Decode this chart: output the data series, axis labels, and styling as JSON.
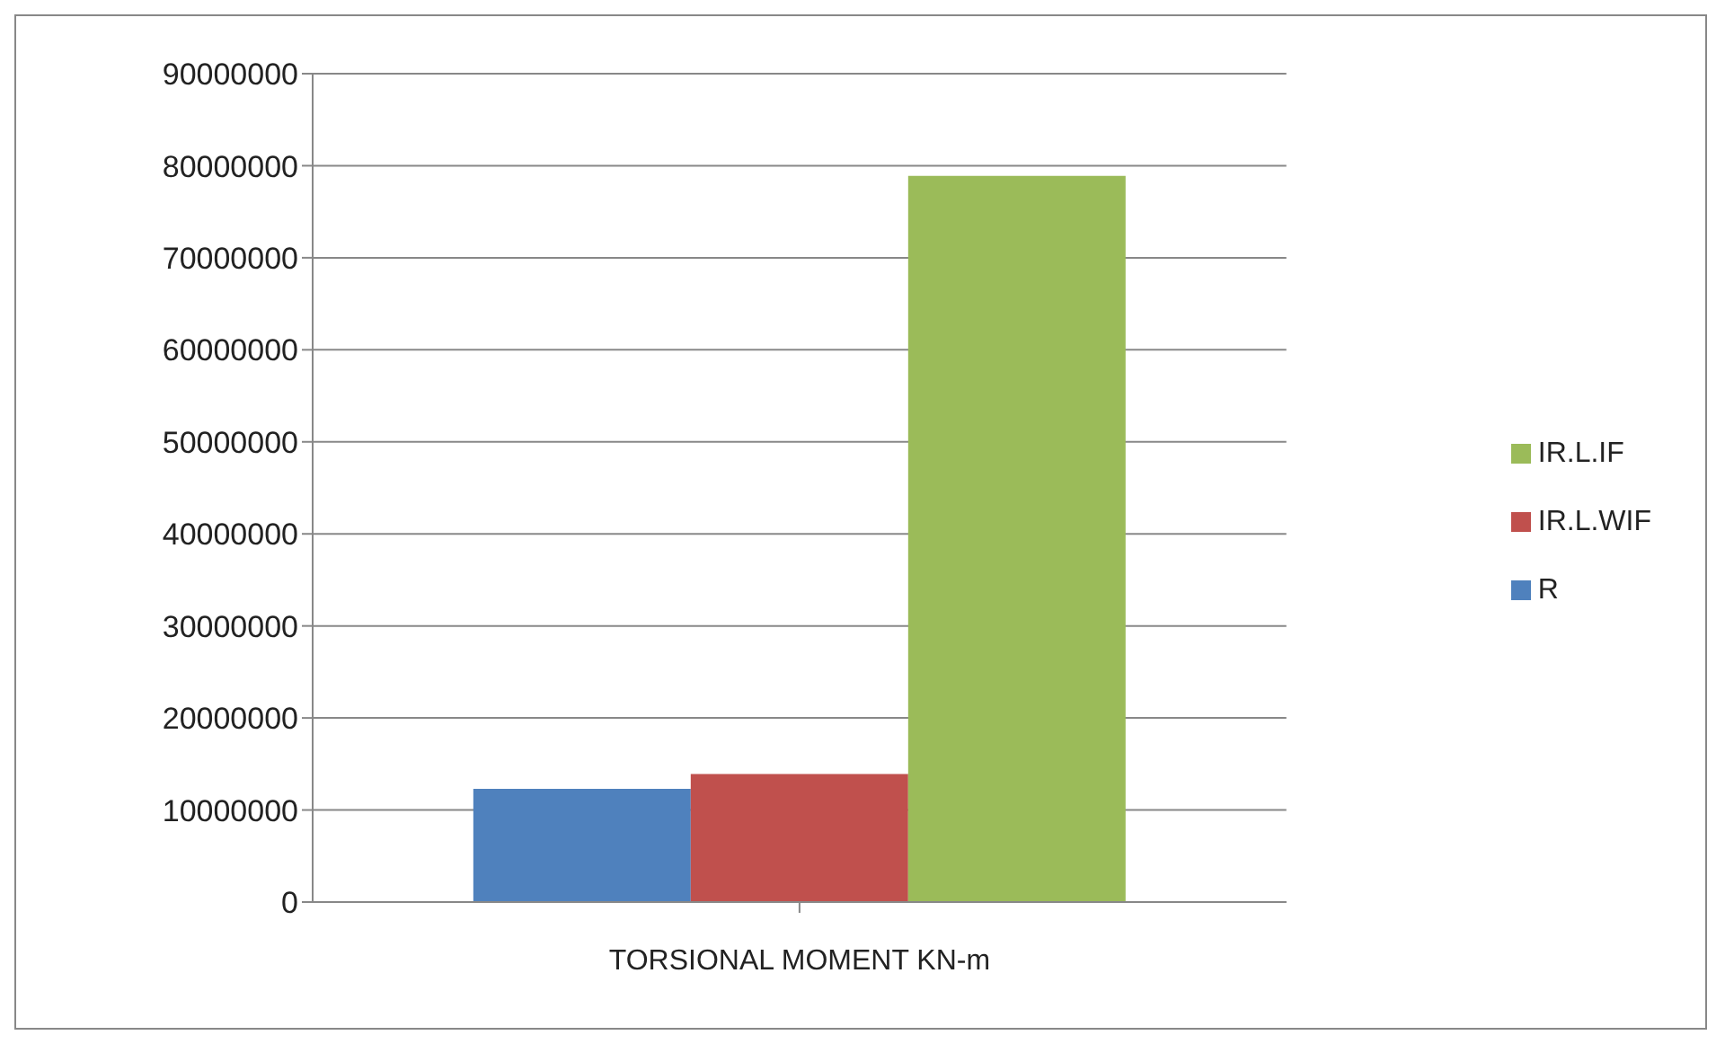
{
  "chart_data": {
    "type": "bar",
    "categories": [
      "TORSIONAL MOMENT KN-m"
    ],
    "series": [
      {
        "name": "R",
        "color": "#4f81bd",
        "values": [
          12300000
        ]
      },
      {
        "name": "IR.L.WIF",
        "color": "#c0504d",
        "values": [
          13900000
        ]
      },
      {
        "name": "IR.L.IF",
        "color": "#9bbb59",
        "values": [
          78900000
        ]
      }
    ],
    "ylim": [
      0,
      90000000
    ],
    "yticks": [
      0,
      10000000,
      20000000,
      30000000,
      40000000,
      50000000,
      60000000,
      70000000,
      80000000,
      90000000
    ],
    "grid": "y",
    "legend": "right"
  }
}
